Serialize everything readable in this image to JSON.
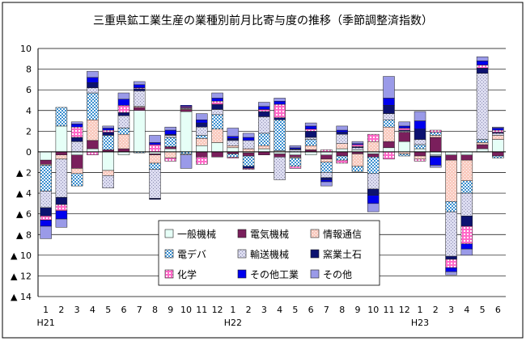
{
  "chart_data": {
    "type": "bar",
    "stacked": true,
    "title": "三重県鉱工業生産の業種別前月比寄与度の推移（季節調整済指数）",
    "categories": [
      "1",
      "2",
      "3",
      "4",
      "5",
      "6",
      "7",
      "8",
      "9",
      "10",
      "11",
      "12",
      "1",
      "2",
      "3",
      "4",
      "5",
      "6",
      "7",
      "8",
      "9",
      "10",
      "11",
      "12",
      "1",
      "2",
      "3",
      "4",
      "5",
      "6"
    ],
    "year_labels": [
      {
        "index": 0,
        "label": "H21"
      },
      {
        "index": 12,
        "label": "H22"
      },
      {
        "index": 24,
        "label": "H23"
      }
    ],
    "ylim": [
      -14,
      10
    ],
    "yticks": [
      10,
      8,
      6,
      4,
      2,
      0,
      -2,
      -4,
      -6,
      -8,
      -10,
      -12,
      -14
    ],
    "ytick_labels": [
      "10",
      "8",
      "6",
      "4",
      "2",
      "0",
      "▲ 2",
      "▲ 4",
      "▲ 6",
      "▲ 8",
      "▲ 10",
      "▲ 12",
      "▲ 14"
    ],
    "grid": true,
    "legend_position": "bottom-center inside plot",
    "series": [
      {
        "name": "一般機械",
        "color": "#e6fff7",
        "pattern": "plain",
        "values": [
          -0.8,
          2.5,
          -0.3,
          0.3,
          -1.8,
          -0.3,
          4.0,
          -0.2,
          0.3,
          3.9,
          0.6,
          0.9,
          0.4,
          -0.1,
          0.3,
          -0.2,
          -0.3,
          -0.3,
          -0.3,
          0.3,
          0.2,
          -0.2,
          0.4,
          1.0,
          0.3,
          -0.3,
          -0.3,
          -0.3,
          0.3,
          1.2
        ]
      },
      {
        "name": "電気機械",
        "color": "#7a1f5c",
        "pattern": "plain",
        "values": [
          -0.4,
          -0.3,
          -1.3,
          0.8,
          0.2,
          0.3,
          0.3,
          -0.1,
          0.2,
          0.2,
          -0.5,
          -0.5,
          -0.2,
          -0.3,
          -0.3,
          -0.3,
          -0.2,
          0.2,
          -0.4,
          -0.4,
          -0.2,
          -0.3,
          0.6,
          0.9,
          -0.4,
          1.4,
          -0.5,
          -0.5,
          0.4,
          -0.4
        ]
      },
      {
        "name": "情報通信",
        "color": "#f4a08c",
        "pattern": "dots",
        "values": [
          -0.1,
          -0.4,
          -0.5,
          2.0,
          -0.5,
          1.4,
          0.1,
          -0.8,
          -0.6,
          0.1,
          0.7,
          1.3,
          0.2,
          0.3,
          0.3,
          0.1,
          -0.1,
          0.4,
          -0.3,
          0.5,
          -1.2,
          1.0,
          1.4,
          -0.2,
          -0.3,
          0.2,
          -4.0,
          -2.0,
          0.2,
          0.4
        ]
      },
      {
        "name": "電デバ",
        "color": "#3a8fd0",
        "pattern": "checker",
        "values": [
          -2.5,
          1.8,
          -1.2,
          2.6,
          1.4,
          0.6,
          -0.1,
          -0.6,
          0.9,
          -0.2,
          0.3,
          1.4,
          -0.3,
          -1.0,
          1.2,
          3.0,
          -0.8,
          0.6,
          -1.0,
          -0.4,
          -0.5,
          -1.6,
          0.7,
          -0.2,
          0.4,
          0.3,
          -1.0,
          -1.2,
          0.3,
          -0.2
        ]
      },
      {
        "name": "輸送機械",
        "color": "#dcdcf0",
        "pattern": "dense",
        "values": [
          -1.6,
          -3.7,
          1.0,
          0.5,
          -1.2,
          1.2,
          1.5,
          -2.8,
          0.2,
          -0.1,
          0.8,
          0.5,
          0.5,
          0.8,
          1.6,
          -2.2,
          0.2,
          0.2,
          -0.5,
          0.9,
          0.2,
          -1.5,
          0.6,
          0.1,
          0.5,
          -0.1,
          -4.3,
          -2.2,
          6.4,
          0.2
        ]
      },
      {
        "name": "窯業土石",
        "color": "#0c1270",
        "pattern": "plain",
        "values": [
          -0.8,
          -0.7,
          0.4,
          0.5,
          0.3,
          0.3,
          0.2,
          -0.1,
          0.1,
          0.1,
          0.4,
          0.5,
          0.2,
          -0.2,
          0.5,
          0.2,
          0.1,
          0.6,
          -0.2,
          0.2,
          0.1,
          -0.6,
          0.8,
          0.1,
          1.0,
          -0.1,
          -0.3,
          -1.0,
          0.5,
          0.1
        ]
      },
      {
        "name": "化学",
        "color": "#ff69c8",
        "pattern": "grid",
        "values": [
          -0.4,
          -0.6,
          1.0,
          -0.3,
          0.2,
          0.7,
          0.1,
          0.7,
          -0.3,
          0.1,
          -0.7,
          0.3,
          -0.1,
          -0.1,
          0.2,
          1.3,
          -0.2,
          0.2,
          0.2,
          -0.3,
          0.2,
          0.7,
          -0.7,
          0.2,
          -0.2,
          0.2,
          -0.8,
          -1.7,
          0.3,
          0.2
        ]
      },
      {
        "name": "その他工業",
        "color": "#0000ee",
        "pattern": "plain",
        "values": [
          -0.6,
          -0.8,
          0.3,
          0.5,
          0.2,
          0.6,
          0.3,
          0.2,
          0.4,
          0.1,
          0.3,
          0.3,
          0.2,
          0.3,
          0.3,
          0.3,
          0.1,
          0.3,
          -0.2,
          0.2,
          0.1,
          -0.8,
          0.7,
          0.2,
          0.8,
          -0.8,
          -0.4,
          -0.5,
          0.4,
          0.2
        ]
      },
      {
        "name": "その他",
        "color": "#9a9ae8",
        "pattern": "plain",
        "values": [
          -1.2,
          -0.8,
          0.2,
          0.6,
          0.2,
          0.6,
          0.3,
          0.7,
          0.3,
          -1.3,
          0.6,
          0.5,
          0.8,
          0.4,
          0.4,
          0.3,
          0.2,
          0.3,
          -0.4,
          0.4,
          0.2,
          -0.8,
          2.1,
          0.4,
          0.9,
          -0.2,
          -0.3,
          -0.6,
          0.4,
          0.1
        ]
      }
    ]
  }
}
